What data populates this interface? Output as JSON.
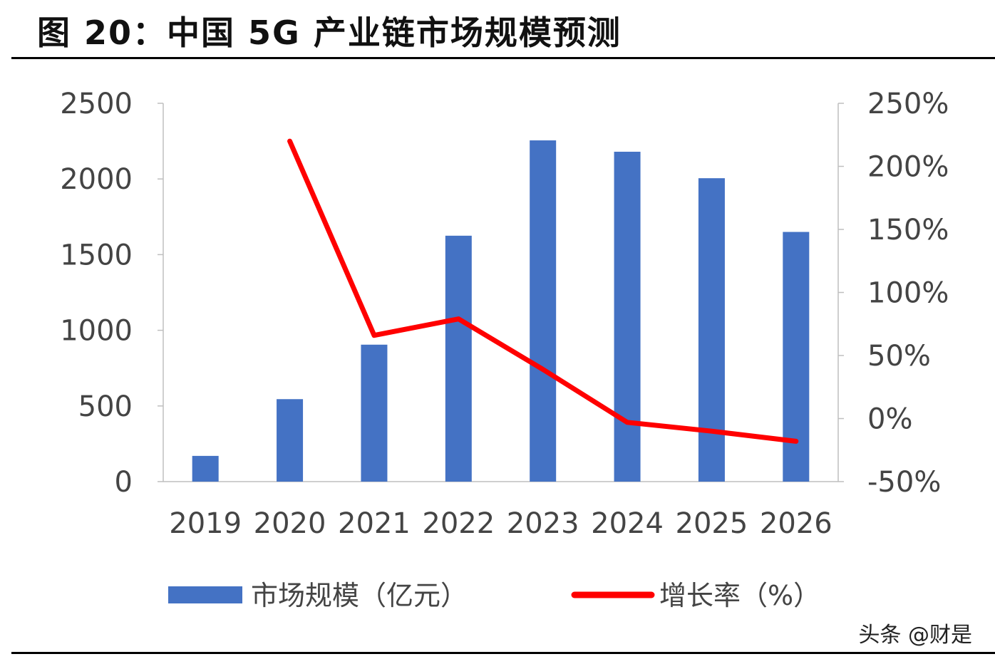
{
  "figure": {
    "title": "图 20：中国 5G 产业链市场规模预测",
    "watermark": "头条 @财是"
  },
  "chart_data": {
    "type": "bar",
    "categories": [
      "2019",
      "2020",
      "2021",
      "2022",
      "2023",
      "2024",
      "2025",
      "2026"
    ],
    "series": [
      {
        "name": "市场规模（亿元）",
        "type": "bar",
        "axis": "left",
        "color": "#4472c4",
        "values": [
          170,
          545,
          905,
          1625,
          2255,
          2180,
          2005,
          1650
        ]
      },
      {
        "name": "增长率（%）",
        "type": "line",
        "axis": "right",
        "color": "#ff0000",
        "values": [
          null,
          220,
          66,
          79,
          39,
          -3,
          -10,
          -18
        ]
      }
    ],
    "y_left": {
      "ylim": [
        0,
        2500
      ],
      "ticks": [
        "0",
        "500",
        "1000",
        "1500",
        "2000",
        "2500"
      ]
    },
    "y_right": {
      "ylim": [
        -50,
        250
      ],
      "ticks": [
        "-50%",
        "0%",
        "50%",
        "100%",
        "150%",
        "200%",
        "250%"
      ]
    },
    "legend": {
      "placement": "bottom"
    },
    "grid": false
  }
}
